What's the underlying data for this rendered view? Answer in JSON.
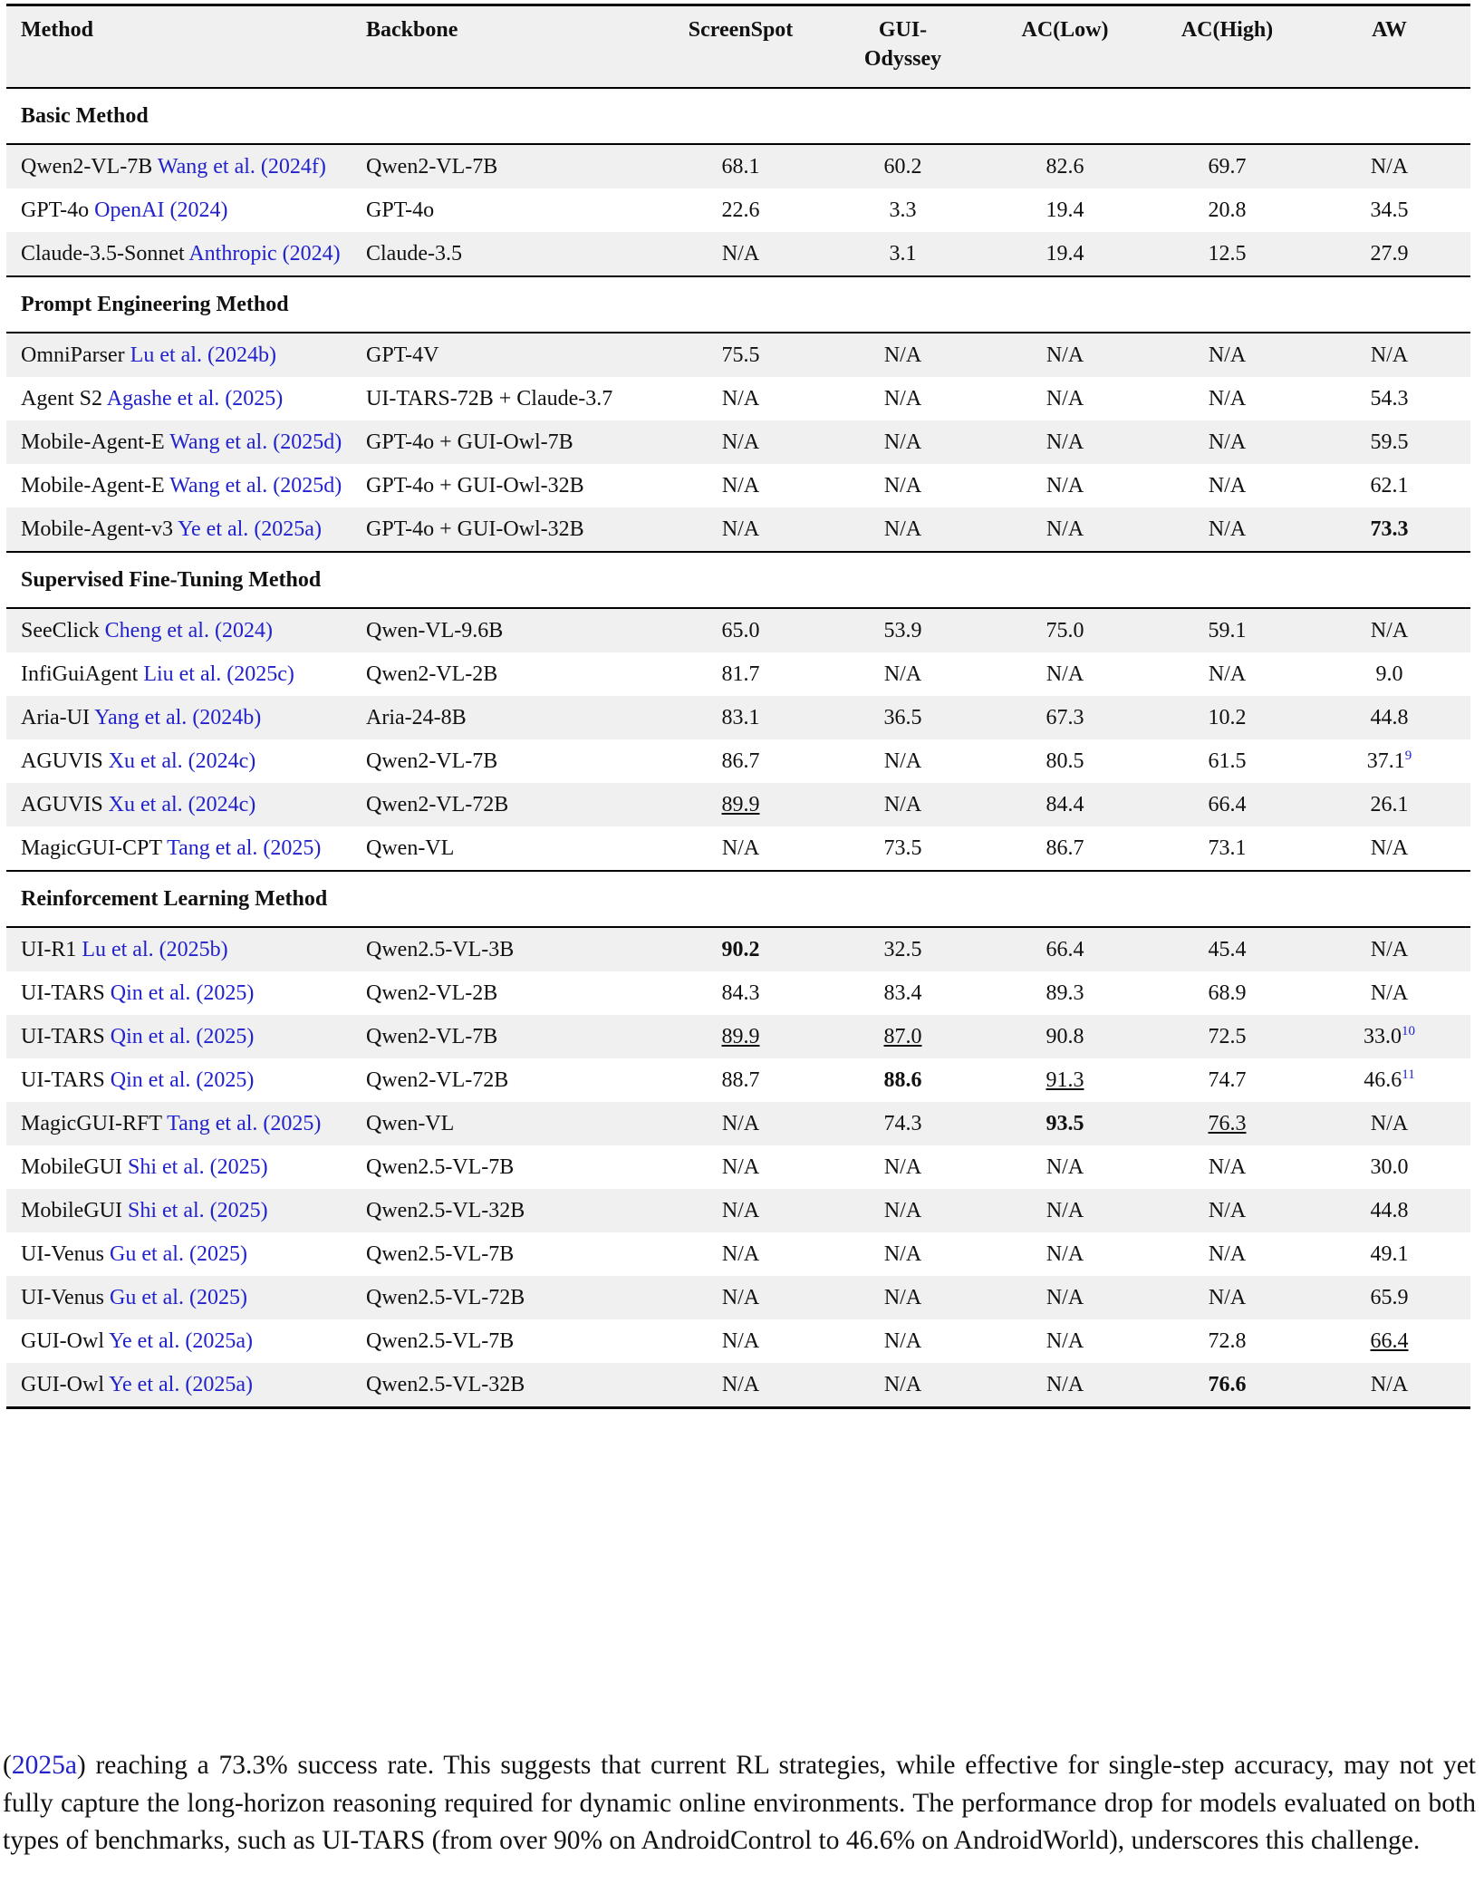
{
  "table": {
    "header": [
      "Method",
      "Backbone",
      "ScreenSpot",
      "GUI-Odyssey",
      "AC(Low)",
      "AC(High)",
      "AW"
    ],
    "sections": [
      {
        "title": "Basic Method",
        "rows": [
          {
            "method": {
              "name": "Qwen2-VL-7B",
              "cite": "Wang et al.",
              "year": "(2024f)"
            },
            "backbone": "Qwen2-VL-7B",
            "cells": [
              "68.1",
              "60.2",
              "82.6",
              "69.7",
              "N/A"
            ]
          },
          {
            "method": {
              "name": "GPT-4o",
              "cite": "OpenAI",
              "year": "(2024)"
            },
            "backbone": "GPT-4o",
            "cells": [
              "22.6",
              "3.3",
              "19.4",
              "20.8",
              "34.5"
            ]
          },
          {
            "method": {
              "name": "Claude-3.5-Sonnet",
              "cite": "Anthropic",
              "year": "(2024)"
            },
            "backbone": "Claude-3.5",
            "cells": [
              "N/A",
              "3.1",
              "19.4",
              "12.5",
              "27.9"
            ]
          }
        ]
      },
      {
        "title": "Prompt Engineering Method",
        "rows": [
          {
            "method": {
              "name": "OmniParser",
              "cite": "Lu et al.",
              "year": "(2024b)"
            },
            "backbone": "GPT-4V",
            "cells": [
              "75.5",
              "N/A",
              "N/A",
              "N/A",
              "N/A"
            ]
          },
          {
            "method": {
              "name": "Agent S2",
              "cite": "Agashe et al.",
              "year": "(2025)"
            },
            "backbone": "UI-TARS-72B + Claude-3.7",
            "cells": [
              "N/A",
              "N/A",
              "N/A",
              "N/A",
              "54.3"
            ]
          },
          {
            "method": {
              "name": "Mobile-Agent-E",
              "cite": "Wang et al.",
              "year": "(2025d)"
            },
            "backbone": "GPT-4o + GUI-Owl-7B",
            "cells": [
              "N/A",
              "N/A",
              "N/A",
              "N/A",
              "59.5"
            ]
          },
          {
            "method": {
              "name": "Mobile-Agent-E",
              "cite": "Wang et al.",
              "year": "(2025d)"
            },
            "backbone": "GPT-4o + GUI-Owl-32B",
            "cells": [
              "N/A",
              "N/A",
              "N/A",
              "N/A",
              "62.1"
            ]
          },
          {
            "method": {
              "name": "Mobile-Agent-v3",
              "cite": "Ye et al.",
              "year": "(2025a)"
            },
            "backbone": "GPT-4o + GUI-Owl-32B",
            "cells": [
              "N/A",
              "N/A",
              "N/A",
              "N/A",
              {
                "text": "73.3",
                "style": "bold"
              }
            ]
          }
        ]
      },
      {
        "title": "Supervised Fine-Tuning Method",
        "rows": [
          {
            "method": {
              "name": "SeeClick",
              "cite": "Cheng et al.",
              "year": "(2024)"
            },
            "backbone": "Qwen-VL-9.6B",
            "cells": [
              "65.0",
              "53.9",
              "75.0",
              "59.1",
              "N/A"
            ]
          },
          {
            "method": {
              "name": "InfiGuiAgent",
              "cite": "Liu et al.",
              "year": "(2025c)"
            },
            "backbone": "Qwen2-VL-2B",
            "cells": [
              "81.7",
              "N/A",
              "N/A",
              "N/A",
              "9.0"
            ]
          },
          {
            "method": {
              "name": "Aria-UI",
              "cite": "Yang et al.",
              "year": "(2024b)"
            },
            "backbone": "Aria-24-8B",
            "cells": [
              "83.1",
              "36.5",
              "67.3",
              "10.2",
              "44.8"
            ]
          },
          {
            "method": {
              "name": "AGUVIS",
              "cite": "Xu et al.",
              "year": "(2024c)"
            },
            "backbone": "Qwen2-VL-7B",
            "cells": [
              "86.7",
              "N/A",
              "80.5",
              "61.5",
              {
                "text": "37.1",
                "note": "9"
              }
            ]
          },
          {
            "method": {
              "name": "AGUVIS",
              "cite": "Xu et al.",
              "year": "(2024c)"
            },
            "backbone": "Qwen2-VL-72B",
            "cells": [
              {
                "text": "89.9",
                "style": "underline"
              },
              "N/A",
              "84.4",
              "66.4",
              "26.1"
            ]
          },
          {
            "method": {
              "name": "MagicGUI-CPT",
              "cite": "Tang et al.",
              "year": "(2025)"
            },
            "backbone": "Qwen-VL",
            "cells": [
              "N/A",
              "73.5",
              "86.7",
              "73.1",
              "N/A"
            ]
          }
        ]
      },
      {
        "title": "Reinforcement Learning Method",
        "rows": [
          {
            "method": {
              "name": "UI-R1",
              "cite": "Lu et al.",
              "year": "(2025b)"
            },
            "backbone": "Qwen2.5-VL-3B",
            "cells": [
              {
                "text": "90.2",
                "style": "bold"
              },
              "32.5",
              "66.4",
              "45.4",
              "N/A"
            ]
          },
          {
            "method": {
              "name": "UI-TARS",
              "cite": "Qin et al.",
              "year": "(2025)"
            },
            "backbone": "Qwen2-VL-2B",
            "cells": [
              "84.3",
              "83.4",
              "89.3",
              "68.9",
              "N/A"
            ]
          },
          {
            "method": {
              "name": "UI-TARS",
              "cite": "Qin et al.",
              "year": "(2025)"
            },
            "backbone": "Qwen2-VL-7B",
            "cells": [
              {
                "text": "89.9",
                "style": "underline"
              },
              {
                "text": "87.0",
                "style": "underline"
              },
              "90.8",
              "72.5",
              {
                "text": "33.0",
                "note": "10"
              }
            ]
          },
          {
            "method": {
              "name": "UI-TARS",
              "cite": "Qin et al.",
              "year": "(2025)"
            },
            "backbone": "Qwen2-VL-72B",
            "cells": [
              "88.7",
              {
                "text": "88.6",
                "style": "bold"
              },
              {
                "text": "91.3",
                "style": "underline"
              },
              "74.7",
              {
                "text": "46.6",
                "note": "11"
              }
            ]
          },
          {
            "method": {
              "name": "MagicGUI-RFT",
              "cite": "Tang et al.",
              "year": "(2025)"
            },
            "backbone": "Qwen-VL",
            "cells": [
              "N/A",
              "74.3",
              {
                "text": "93.5",
                "style": "bold"
              },
              {
                "text": "76.3",
                "style": "underline"
              },
              "N/A"
            ]
          },
          {
            "method": {
              "name": "MobileGUI",
              "cite": "Shi et al.",
              "year": "(2025)"
            },
            "backbone": "Qwen2.5-VL-7B",
            "cells": [
              "N/A",
              "N/A",
              "N/A",
              "N/A",
              "30.0"
            ]
          },
          {
            "method": {
              "name": "MobileGUI",
              "cite": "Shi et al.",
              "year": "(2025)"
            },
            "backbone": "Qwen2.5-VL-32B",
            "cells": [
              "N/A",
              "N/A",
              "N/A",
              "N/A",
              "44.8"
            ]
          },
          {
            "method": {
              "name": "UI-Venus",
              "cite": "Gu et al.",
              "year": "(2025)"
            },
            "backbone": "Qwen2.5-VL-7B",
            "cells": [
              "N/A",
              "N/A",
              "N/A",
              "N/A",
              "49.1"
            ]
          },
          {
            "method": {
              "name": "UI-Venus",
              "cite": "Gu et al.",
              "year": "(2025)"
            },
            "backbone": "Qwen2.5-VL-72B",
            "cells": [
              "N/A",
              "N/A",
              "N/A",
              "N/A",
              "65.9"
            ]
          },
          {
            "method": {
              "name": "GUI-Owl",
              "cite": "Ye et al.",
              "year": "(2025a)"
            },
            "backbone": "Qwen2.5-VL-7B",
            "cells": [
              "N/A",
              "N/A",
              "N/A",
              "72.8",
              {
                "text": "66.4",
                "style": "underline"
              }
            ]
          },
          {
            "method": {
              "name": "GUI-Owl",
              "cite": "Ye et al.",
              "year": "(2025a)"
            },
            "backbone": "Qwen2.5-VL-32B",
            "cells": [
              "N/A",
              "N/A",
              "N/A",
              {
                "text": "76.6",
                "style": "bold"
              },
              "N/A"
            ]
          }
        ]
      }
    ]
  },
  "paragraph": {
    "parts": [
      {
        "text": "("
      },
      {
        "text": "2025a",
        "link": true
      },
      {
        "text": ") reaching a 73.3% success rate. This suggests that current RL strategies, while effective for single-step accuracy, may not yet fully capture the long-horizon reasoning required for dynamic online environments. The performance drop for models evaluated on both types of benchmarks, such as UI-TARS (from over 90% on AndroidControl to 46.6% on AndroidWorld), underscores this challenge."
      }
    ]
  }
}
